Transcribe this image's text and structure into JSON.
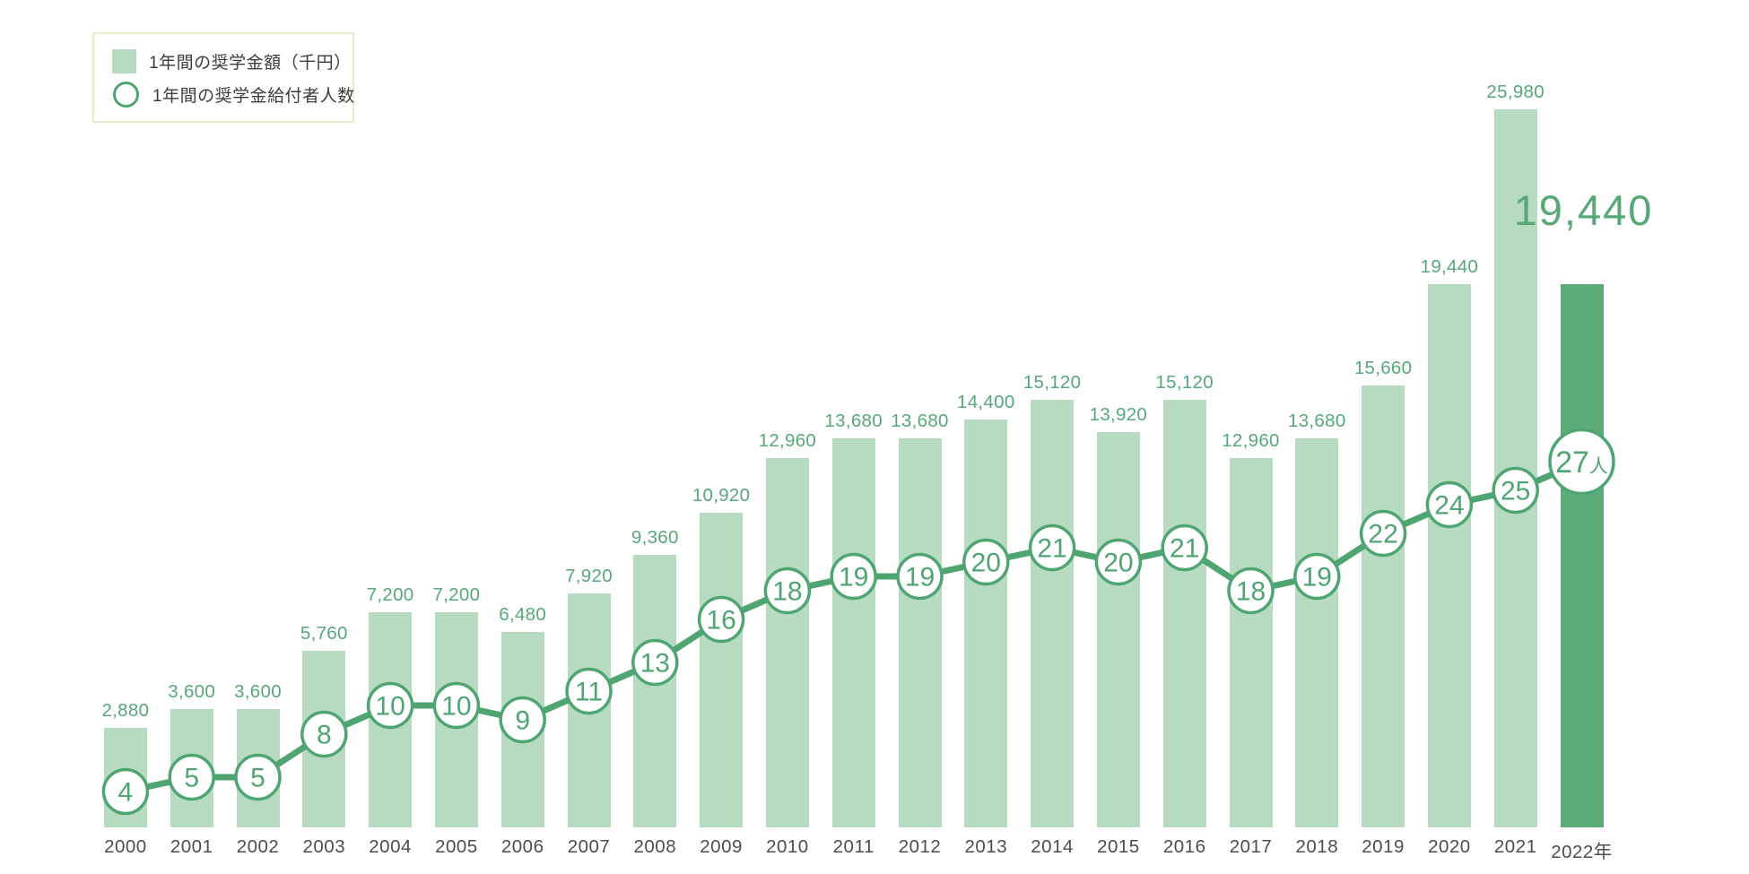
{
  "legend": {
    "amount_label": "1年間の奨学金額（千円）",
    "recipients_label": "1年間の奨学金給付者人数"
  },
  "highlight": {
    "big_value_label": "19,440",
    "year": "2022年"
  },
  "colors": {
    "bar_light": "#b6dbc1",
    "bar_dark": "#5cac79",
    "line_green": "#4fa572",
    "value_text_green": "#57a878",
    "circle_text_green": "#4fa572",
    "year_text_gray": "#4d4d4d",
    "legend_border": "#e6edcb"
  },
  "chart_data": {
    "type": "combo-bar-line",
    "title": "",
    "xlabel": "",
    "ylabel": "",
    "grid": false,
    "legend_position": "top-left",
    "categories": [
      "2000",
      "2001",
      "2002",
      "2003",
      "2004",
      "2005",
      "2006",
      "2007",
      "2008",
      "2009",
      "2010",
      "2011",
      "2012",
      "2013",
      "2014",
      "2015",
      "2016",
      "2017",
      "2018",
      "2019",
      "2020",
      "2021",
      "2022年"
    ],
    "series": [
      {
        "name": "1年間の奨学金額（千円）",
        "type": "bar",
        "values": [
          2880,
          3600,
          3600,
          5760,
          7200,
          7200,
          6480,
          7920,
          9360,
          10920,
          12960,
          13680,
          13680,
          14400,
          15120,
          13920,
          15120,
          12960,
          13680,
          15660,
          19440,
          25980,
          19440
        ],
        "value_labels": [
          "2,880",
          "3,600",
          "3,600",
          "5,760",
          "7,200",
          "7,200",
          "6,480",
          "7,920",
          "9,360",
          "10,920",
          "12,960",
          "13,680",
          "13,680",
          "14,400",
          "15,120",
          "13,920",
          "15,120",
          "12,960",
          "13,680",
          "15,660",
          "19,440",
          "25,980",
          null
        ],
        "highlight_index": 22,
        "highlight_value_label": "19,440"
      },
      {
        "name": "1年間の奨学金給付者人数",
        "type": "line",
        "values": [
          4,
          5,
          5,
          8,
          10,
          10,
          9,
          11,
          13,
          16,
          18,
          19,
          19,
          20,
          21,
          20,
          21,
          18,
          19,
          22,
          24,
          25,
          27
        ],
        "point_labels": [
          "4",
          "5",
          "5",
          "8",
          "10",
          "10",
          "9",
          "11",
          "13",
          "16",
          "18",
          "19",
          "19",
          "20",
          "21",
          "20",
          "21",
          "18",
          "19",
          "22",
          "24",
          "25",
          "27人"
        ],
        "last_point_suffix": "人"
      }
    ]
  }
}
